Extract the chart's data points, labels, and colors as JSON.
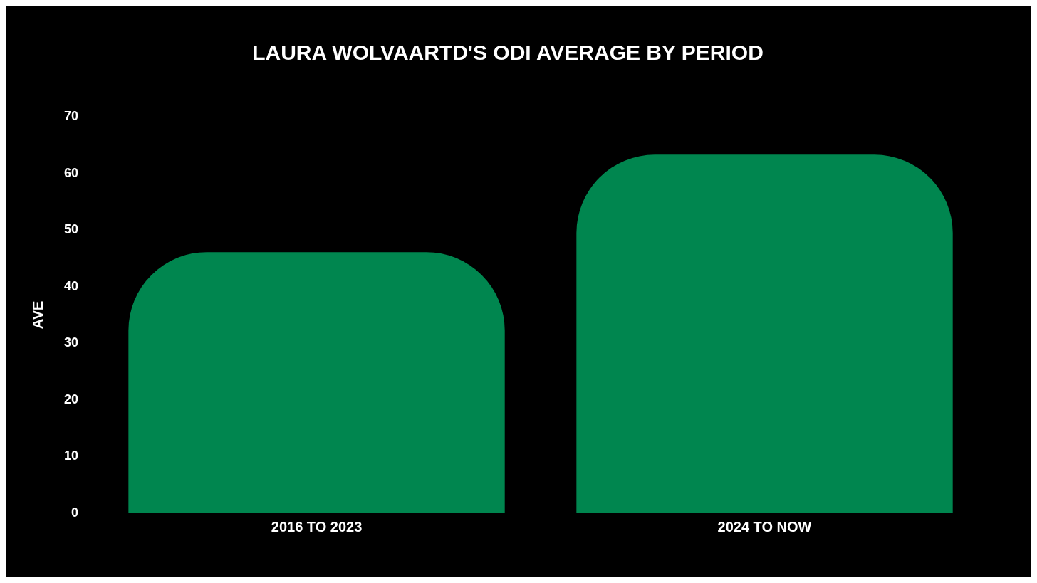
{
  "chart_data": {
    "type": "bar",
    "title": "LAURA WOLVAARTD'S ODI AVERAGE BY PERIOD",
    "ylabel": "AVE",
    "categories": [
      "2016 TO 2023",
      "2024 TO NOW"
    ],
    "values": [
      46.1,
      63.3
    ],
    "color": "#00864f",
    "ylim": [
      0,
      70
    ],
    "yticks": [
      0,
      10,
      20,
      30,
      40,
      50,
      60,
      70
    ],
    "grid": false,
    "legend": false
  }
}
